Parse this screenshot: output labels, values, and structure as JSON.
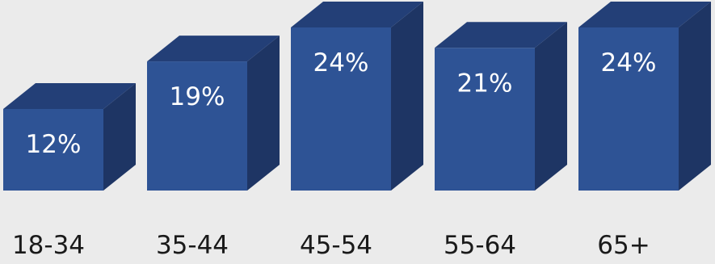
{
  "chart_data": {
    "type": "bar",
    "style": "3d",
    "categories": [
      "18-34",
      "35-44",
      "45-54",
      "55-64",
      "65+"
    ],
    "values": [
      12,
      19,
      24,
      21,
      24
    ],
    "value_labels": [
      "12%",
      "19%",
      "24%",
      "21%",
      "24%"
    ],
    "unit": "%",
    "title": "",
    "xlabel": "",
    "ylabel": "",
    "ylim": [
      0,
      24
    ],
    "grid": false,
    "colors": {
      "front": "#2e5395",
      "top": "#233f77",
      "side": "#1e3564",
      "background": "#ebebeb"
    }
  }
}
